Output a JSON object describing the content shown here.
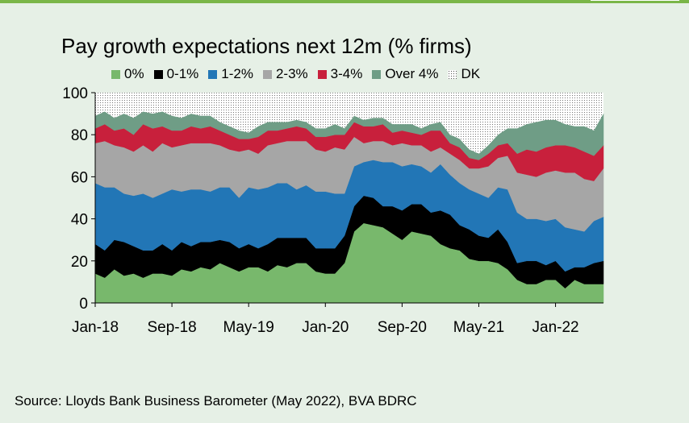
{
  "chart_data": {
    "type": "area",
    "stacked": true,
    "title": "Pay growth expectations next 12m (% firms)",
    "ylim": [
      0,
      100
    ],
    "yticks": [
      0,
      20,
      40,
      60,
      80,
      100
    ],
    "x_start": "Jan-18",
    "x_end": "Jun-22",
    "n_points": 54,
    "x_tick_labels": [
      {
        "label": "Jan-18",
        "index": 0
      },
      {
        "label": "Sep-18",
        "index": 8
      },
      {
        "label": "May-19",
        "index": 16
      },
      {
        "label": "Jan-20",
        "index": 24
      },
      {
        "label": "Sep-20",
        "index": 32
      },
      {
        "label": "May-21",
        "index": 40
      },
      {
        "label": "Jan-22",
        "index": 48
      }
    ],
    "series": [
      {
        "name": "0%",
        "color": "#78b86c",
        "values": [
          14,
          12,
          16,
          13,
          14,
          12,
          14,
          14,
          13,
          16,
          15,
          17,
          16,
          19,
          17,
          15,
          17,
          17,
          15,
          18,
          17,
          19,
          19,
          15,
          14,
          14,
          19,
          34,
          38,
          37,
          36,
          33,
          30,
          34,
          33,
          32,
          28,
          26,
          25,
          21,
          20,
          20,
          19,
          16,
          11,
          9,
          9,
          11,
          11,
          7,
          11,
          9,
          9,
          9
        ]
      },
      {
        "name": "0-1%",
        "color": "#000000",
        "values": [
          14,
          13,
          14,
          16,
          13,
          13,
          11,
          14,
          12,
          13,
          12,
          12,
          13,
          11,
          12,
          11,
          11,
          9,
          13,
          13,
          14,
          12,
          12,
          11,
          12,
          12,
          13,
          12,
          13,
          13,
          10,
          13,
          14,
          13,
          14,
          11,
          16,
          16,
          12,
          14,
          12,
          11,
          16,
          13,
          8,
          11,
          11,
          7,
          9,
          8,
          6,
          8,
          10,
          11
        ]
      },
      {
        "name": "1-2%",
        "color": "#2276b6",
        "values": [
          29,
          30,
          25,
          23,
          24,
          27,
          25,
          24,
          29,
          24,
          27,
          25,
          24,
          25,
          26,
          24,
          27,
          28,
          27,
          26,
          26,
          23,
          25,
          27,
          27,
          26,
          20,
          19,
          16,
          18,
          21,
          21,
          21,
          19,
          18,
          19,
          22,
          19,
          20,
          19,
          20,
          19,
          20,
          25,
          24,
          20,
          20,
          21,
          20,
          21,
          18,
          17,
          20,
          21
        ]
      },
      {
        "name": "2-3%",
        "color": "#a6a6a6",
        "values": [
          19,
          22,
          20,
          22,
          21,
          23,
          22,
          24,
          20,
          22,
          22,
          22,
          23,
          20,
          18,
          22,
          18,
          17,
          20,
          19,
          20,
          23,
          21,
          20,
          19,
          22,
          21,
          14,
          9,
          9,
          10,
          8,
          11,
          9,
          10,
          10,
          8,
          10,
          11,
          10,
          12,
          15,
          14,
          16,
          19,
          21,
          20,
          23,
          23,
          26,
          27,
          25,
          19,
          23
        ]
      },
      {
        "name": "3-4%",
        "color": "#c8203c",
        "values": [
          7,
          8,
          7,
          9,
          8,
          10,
          11,
          8,
          8,
          7,
          8,
          7,
          8,
          7,
          7,
          6,
          5,
          8,
          7,
          6,
          6,
          7,
          6,
          6,
          7,
          6,
          7,
          7,
          8,
          7,
          8,
          6,
          6,
          6,
          5,
          10,
          8,
          5,
          6,
          5,
          4,
          6,
          6,
          6,
          9,
          12,
          12,
          12,
          12,
          13,
          12,
          13,
          12,
          11
        ]
      },
      {
        "name": "Over 4%",
        "color": "#6f9d86",
        "values": [
          6,
          6,
          6,
          7,
          8,
          6,
          7,
          7,
          7,
          6,
          6,
          6,
          5,
          4,
          4,
          4,
          3,
          5,
          4,
          4,
          3,
          3,
          3,
          4,
          4,
          5,
          3,
          3,
          3,
          4,
          3,
          4,
          3,
          4,
          3,
          3,
          4,
          4,
          4,
          4,
          3,
          4,
          5,
          7,
          12,
          12,
          14,
          13,
          12,
          10,
          10,
          12,
          12,
          15
        ]
      },
      {
        "name": "DK",
        "color": "#ffffff",
        "values": [
          11,
          9,
          12,
          10,
          12,
          9,
          10,
          9,
          11,
          12,
          10,
          11,
          11,
          14,
          16,
          18,
          19,
          16,
          14,
          14,
          14,
          13,
          14,
          17,
          17,
          15,
          17,
          11,
          13,
          12,
          12,
          15,
          15,
          15,
          17,
          15,
          14,
          20,
          22,
          27,
          29,
          25,
          20,
          17,
          17,
          15,
          14,
          13,
          13,
          15,
          16,
          16,
          18,
          10
        ]
      }
    ]
  },
  "source": "Source: Lloyds Bank Business Barometer (May 2022), BVA BDRC"
}
